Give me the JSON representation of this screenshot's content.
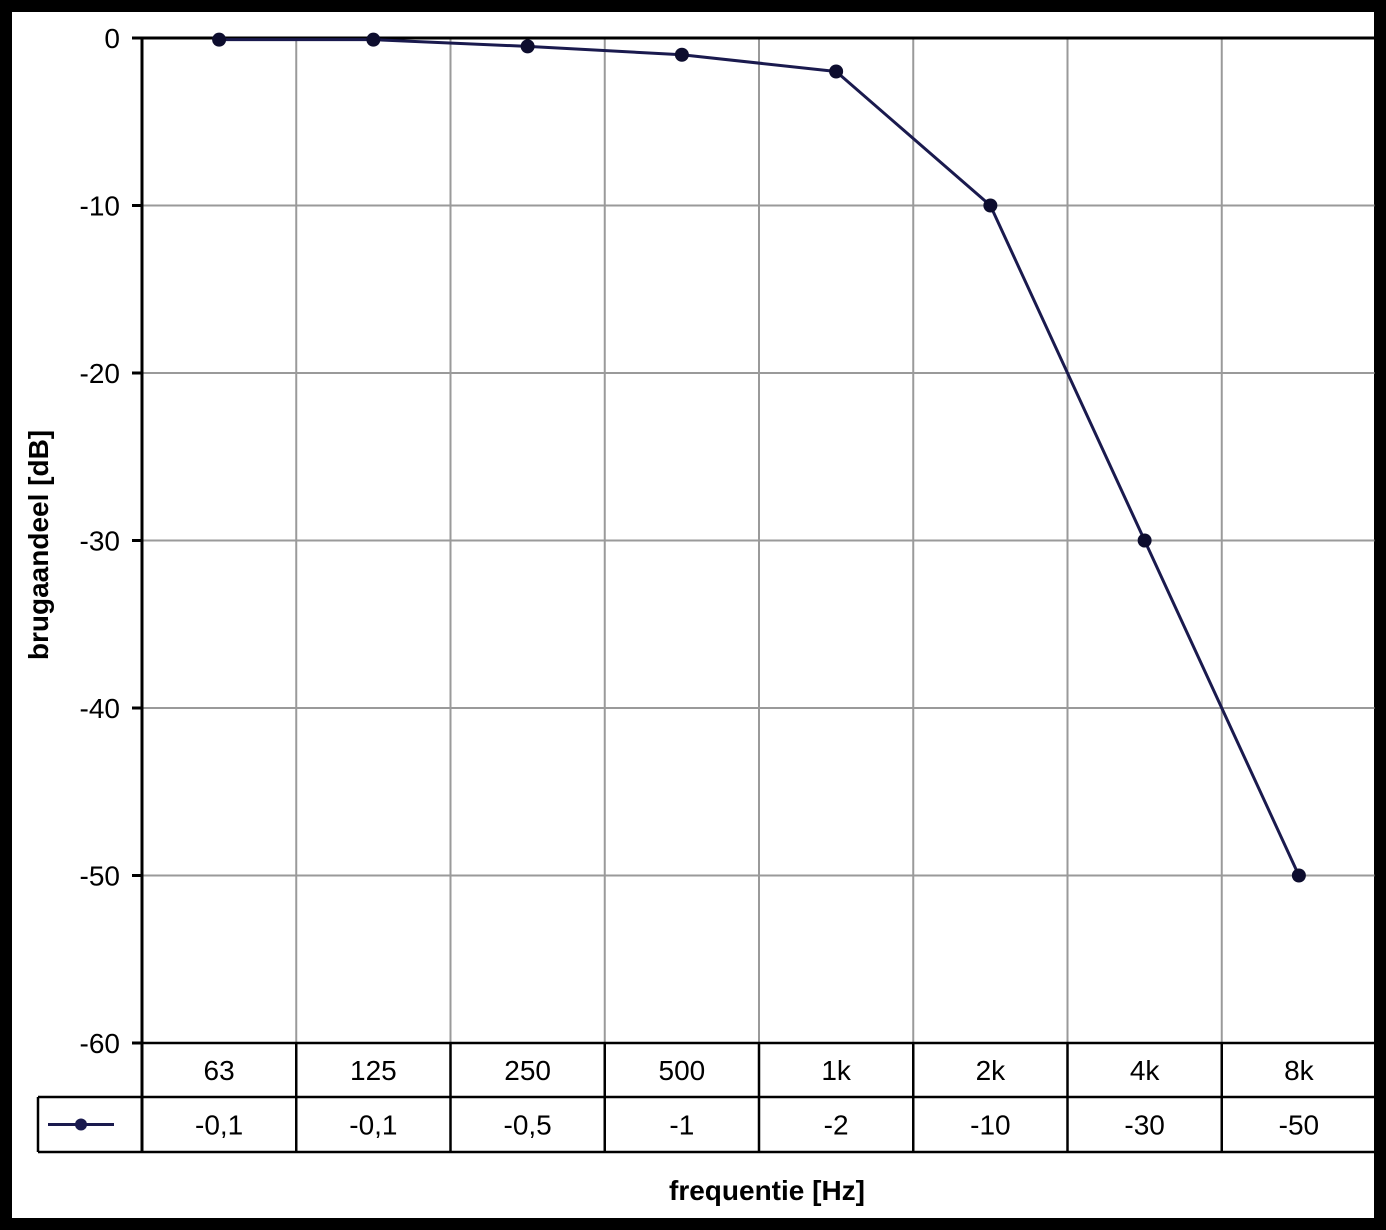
{
  "chart_data": {
    "type": "line",
    "categories": [
      "63",
      "125",
      "250",
      "500",
      "1k",
      "2k",
      "4k",
      "8k"
    ],
    "series": [
      {
        "values": [
          -0.1,
          -0.1,
          -0.5,
          -1,
          -2,
          -10,
          -30,
          -50
        ],
        "color": "#1a1a4e"
      }
    ],
    "table_values": [
      "-0,1",
      "-0,1",
      "-0,5",
      "-1",
      "-2",
      "-10",
      "-30",
      "-50"
    ],
    "xlabel": "frequentie [Hz]",
    "ylabel": "brugaandeel [dB]",
    "ylim": [
      -60,
      0
    ],
    "yticks": [
      "0",
      "-10",
      "-20",
      "-30",
      "-40",
      "-50",
      "-60"
    ],
    "ytick_values": [
      0,
      -10,
      -20,
      -30,
      -40,
      -50,
      -60
    ],
    "grid": true,
    "legend": "data-table"
  }
}
